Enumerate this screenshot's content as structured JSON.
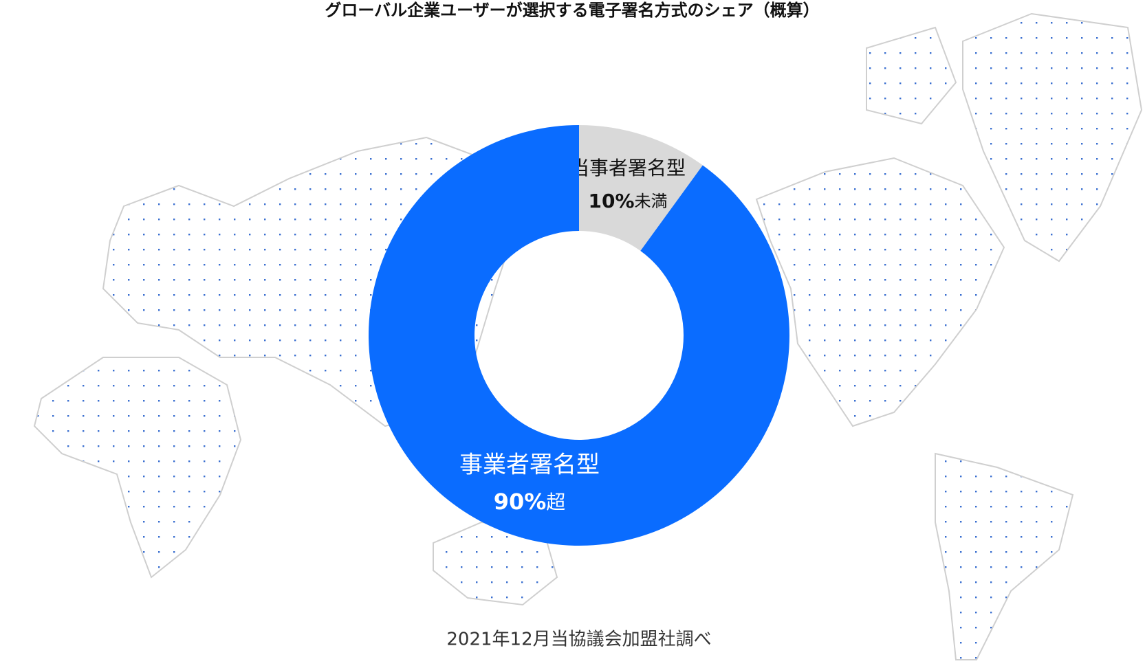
{
  "chart_data": {
    "type": "pie",
    "title": "グローバル企業ユーザーが選択する電子署名方式のシェア（概算）",
    "categories": [
      "当事者署名型",
      "事業者署名型"
    ],
    "values": [
      10,
      90
    ],
    "value_labels": [
      "10%",
      "90%"
    ],
    "value_qualifiers": [
      "未満",
      "超"
    ],
    "colors": [
      "#d9d9d9",
      "#0a6cff"
    ],
    "label_colors": [
      "#111111",
      "#ffffff"
    ],
    "hole": true,
    "source": "2021年12月当協議会加盟社調べ"
  }
}
